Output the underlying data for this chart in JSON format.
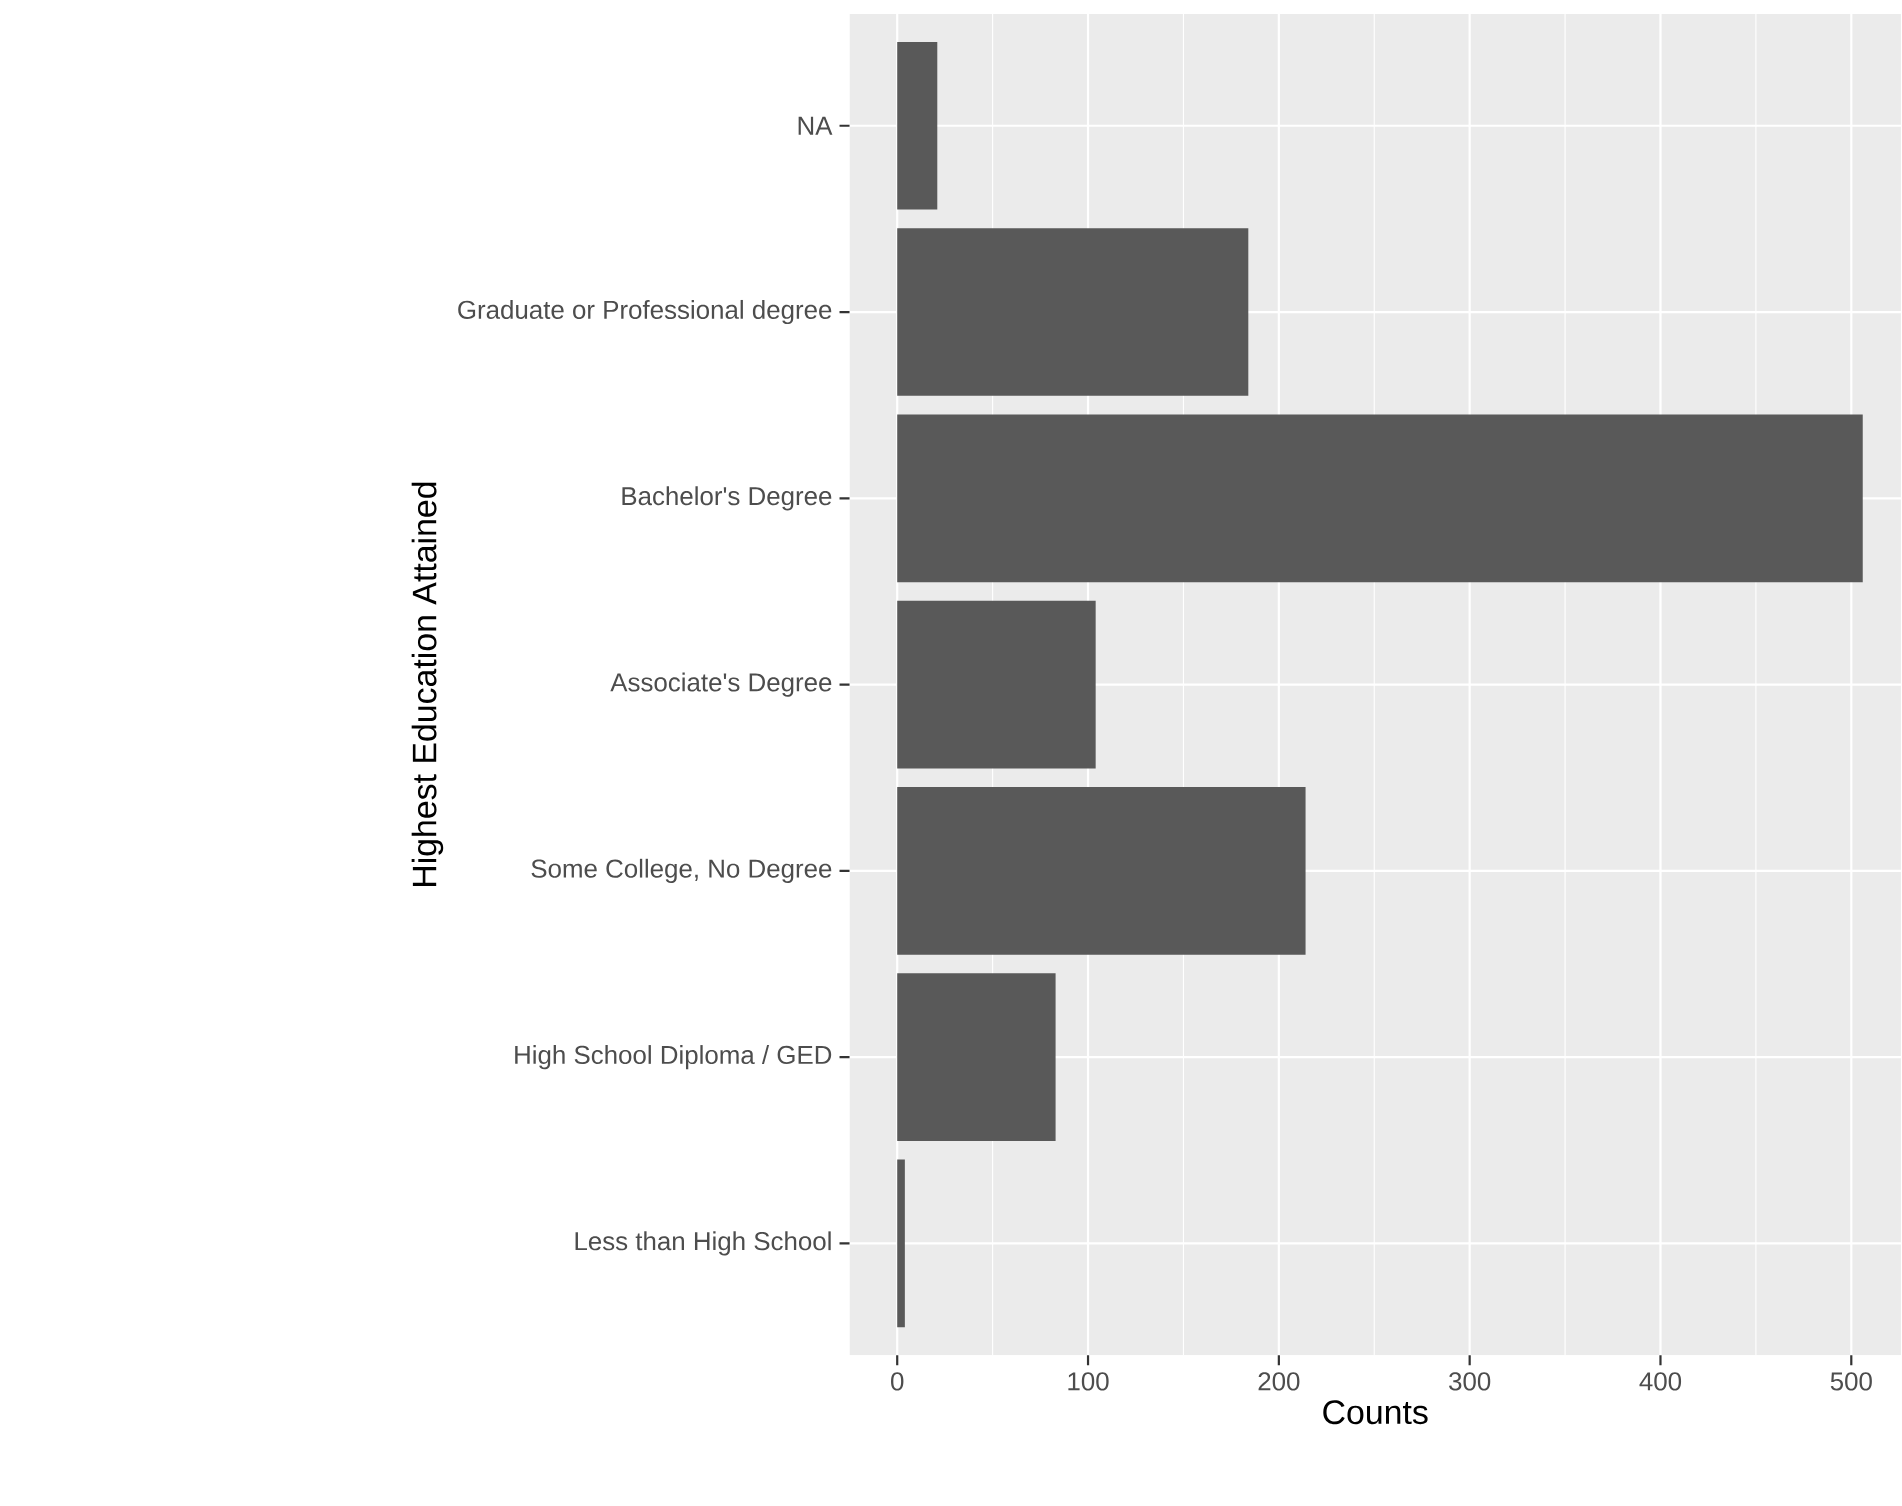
{
  "chart_data": {
    "type": "bar",
    "orientation": "horizontal",
    "xlabel": "Counts",
    "ylabel": "Highest Education Attained",
    "categories": [
      "NA",
      "Graduate or Professional degree",
      "Bachelor's Degree",
      "Associate's Degree",
      "Some College, No Degree",
      "High School Diploma / GED",
      "Less than High School"
    ],
    "values": [
      21,
      184,
      506,
      104,
      214,
      83,
      4
    ],
    "color": "#595959",
    "xlim": [
      -25,
      526
    ],
    "xticks": [
      0,
      100,
      200,
      300,
      400,
      500
    ],
    "grid": true
  }
}
